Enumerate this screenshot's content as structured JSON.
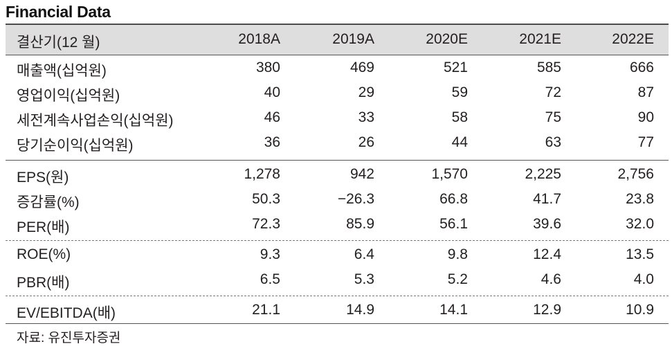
{
  "title": "Financial Data",
  "header": {
    "label": "결산기(12 월)",
    "years": [
      "2018A",
      "2019A",
      "2020E",
      "2021E",
      "2022E"
    ]
  },
  "rows": [
    {
      "label": "매출액(십억원)",
      "values": [
        "380",
        "469",
        "521",
        "585",
        "666"
      ]
    },
    {
      "label": "영업이익(십억원)",
      "values": [
        "40",
        "29",
        "59",
        "72",
        "87"
      ]
    },
    {
      "label": "세전계속사업손익(십억원)",
      "values": [
        "46",
        "33",
        "58",
        "75",
        "90"
      ]
    },
    {
      "label": "당기순이익(십억원)",
      "values": [
        "36",
        "26",
        "44",
        "63",
        "77"
      ]
    },
    {
      "label": "EPS(원)",
      "values": [
        "1,278",
        "942",
        "1,570",
        "2,225",
        "2,756"
      ]
    },
    {
      "label": "증감률(%)",
      "values": [
        "50.3",
        "−26.3",
        "66.8",
        "41.7",
        "23.8"
      ]
    },
    {
      "label": "PER(배)",
      "values": [
        "72.3",
        "85.9",
        "56.1",
        "39.6",
        "32.0"
      ]
    },
    {
      "label": "ROE(%)",
      "values": [
        "9.3",
        "6.4",
        "9.8",
        "12.4",
        "13.5"
      ]
    },
    {
      "label": "PBR(배)",
      "values": [
        "6.5",
        "5.3",
        "5.2",
        "4.6",
        "4.0"
      ]
    },
    {
      "label": "EV/EBITDA(배)",
      "values": [
        "21.1",
        "14.9",
        "14.1",
        "12.9",
        "10.9"
      ]
    }
  ],
  "source": "자료: 유진투자증권"
}
